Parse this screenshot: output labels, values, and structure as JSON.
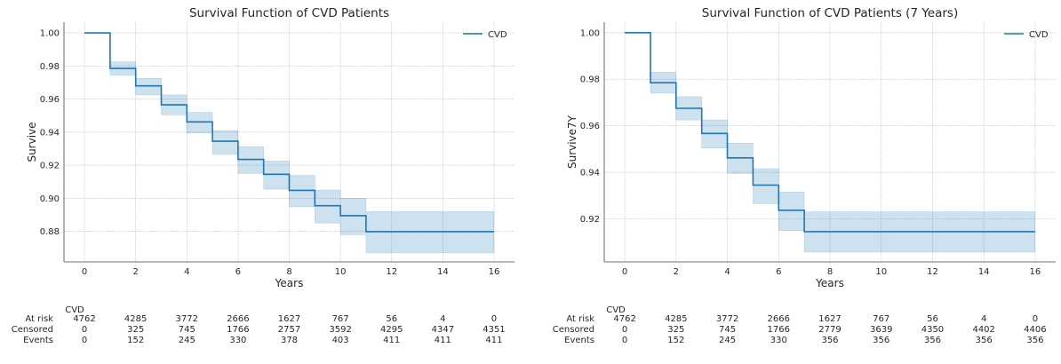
{
  "chart_data": [
    {
      "type": "line",
      "title": "Survival Function of CVD Patients",
      "xlabel": "Years",
      "ylabel": "Survive",
      "xlim": [
        -0.8,
        16.8
      ],
      "ylim": [
        0.8615,
        1.0065
      ],
      "xticks": [
        0,
        2,
        4,
        6,
        8,
        10,
        12,
        14,
        16
      ],
      "yticks": [
        0.88,
        0.9,
        0.92,
        0.94,
        0.96,
        0.98,
        1.0
      ],
      "ytick_labels": [
        "0.88",
        "0.90",
        "0.92",
        "0.94",
        "0.96",
        "0.98",
        "1.00"
      ],
      "grid": true,
      "legend": {
        "position": "top-right",
        "entries": [
          "CVD"
        ]
      },
      "series": [
        {
          "name": "CVD",
          "color": "#1f77b4",
          "step": "post",
          "x": [
            0,
            1,
            2,
            3,
            4,
            5,
            6,
            7,
            8,
            9,
            10,
            11,
            16
          ],
          "y": [
            1.0,
            0.9785,
            0.968,
            0.9565,
            0.9462,
            0.9345,
            0.9235,
            0.9145,
            0.9048,
            0.8955,
            0.8895,
            0.8798,
            0.8798
          ],
          "ci_lower": [
            1.0,
            0.9745,
            0.9625,
            0.9505,
            0.9395,
            0.9265,
            0.915,
            0.9055,
            0.895,
            0.885,
            0.878,
            0.867,
            0.867
          ],
          "ci_upper": [
            1.0,
            0.9825,
            0.9725,
            0.9625,
            0.952,
            0.941,
            0.9312,
            0.9225,
            0.9138,
            0.905,
            0.9,
            0.892,
            0.892
          ]
        }
      ],
      "risk_table": {
        "header": "CVD",
        "timepoints": [
          0,
          2,
          4,
          6,
          8,
          10,
          12,
          14,
          16
        ],
        "rows": [
          {
            "label": "At risk",
            "values": [
              "4762",
              "4285",
              "3772",
              "2666",
              "1627",
              "767",
              "56",
              "4",
              "0"
            ]
          },
          {
            "label": "Censored",
            "values": [
              "0",
              "325",
              "745",
              "1766",
              "2757",
              "3592",
              "4295",
              "4347",
              "4351"
            ]
          },
          {
            "label": "Events",
            "values": [
              "0",
              "152",
              "245",
              "330",
              "378",
              "403",
              "411",
              "411",
              "411"
            ]
          }
        ]
      }
    },
    {
      "type": "line",
      "title": "Survival Function of CVD Patients (7 Years)",
      "xlabel": "Years",
      "ylabel": "Survive7Y",
      "xlim": [
        -0.8,
        16.8
      ],
      "ylim": [
        0.9015,
        1.0045
      ],
      "xticks": [
        0,
        2,
        4,
        6,
        8,
        10,
        12,
        14,
        16
      ],
      "yticks": [
        0.92,
        0.94,
        0.96,
        0.98,
        1.0
      ],
      "ytick_labels": [
        "0.92",
        "0.94",
        "0.96",
        "0.98",
        "1.00"
      ],
      "grid": true,
      "legend": {
        "position": "top-right",
        "entries": [
          "CVD"
        ]
      },
      "series": [
        {
          "name": "CVD",
          "color": "#1f77b4",
          "step": "post",
          "x": [
            0,
            1,
            2,
            3,
            4,
            5,
            6,
            7,
            16
          ],
          "y": [
            1.0,
            0.9785,
            0.9675,
            0.9567,
            0.9462,
            0.9345,
            0.9237,
            0.9145,
            0.9145
          ],
          "ci_lower": [
            1.0,
            0.974,
            0.9625,
            0.9505,
            0.9395,
            0.9265,
            0.915,
            0.9057,
            0.9057
          ],
          "ci_upper": [
            1.0,
            0.983,
            0.9725,
            0.9625,
            0.9525,
            0.9415,
            0.9315,
            0.923,
            0.923
          ]
        }
      ],
      "risk_table": {
        "header": "CVD",
        "timepoints": [
          0,
          2,
          4,
          6,
          8,
          10,
          12,
          14,
          16
        ],
        "rows": [
          {
            "label": "At risk",
            "values": [
              "4762",
              "4285",
              "3772",
              "2666",
              "1627",
              "767",
              "56",
              "4",
              "0"
            ]
          },
          {
            "label": "Censored",
            "values": [
              "0",
              "325",
              "745",
              "1766",
              "2779",
              "3639",
              "4350",
              "4402",
              "4406"
            ]
          },
          {
            "label": "Events",
            "values": [
              "0",
              "152",
              "245",
              "330",
              "356",
              "356",
              "356",
              "356",
              "356"
            ]
          }
        ]
      }
    }
  ]
}
